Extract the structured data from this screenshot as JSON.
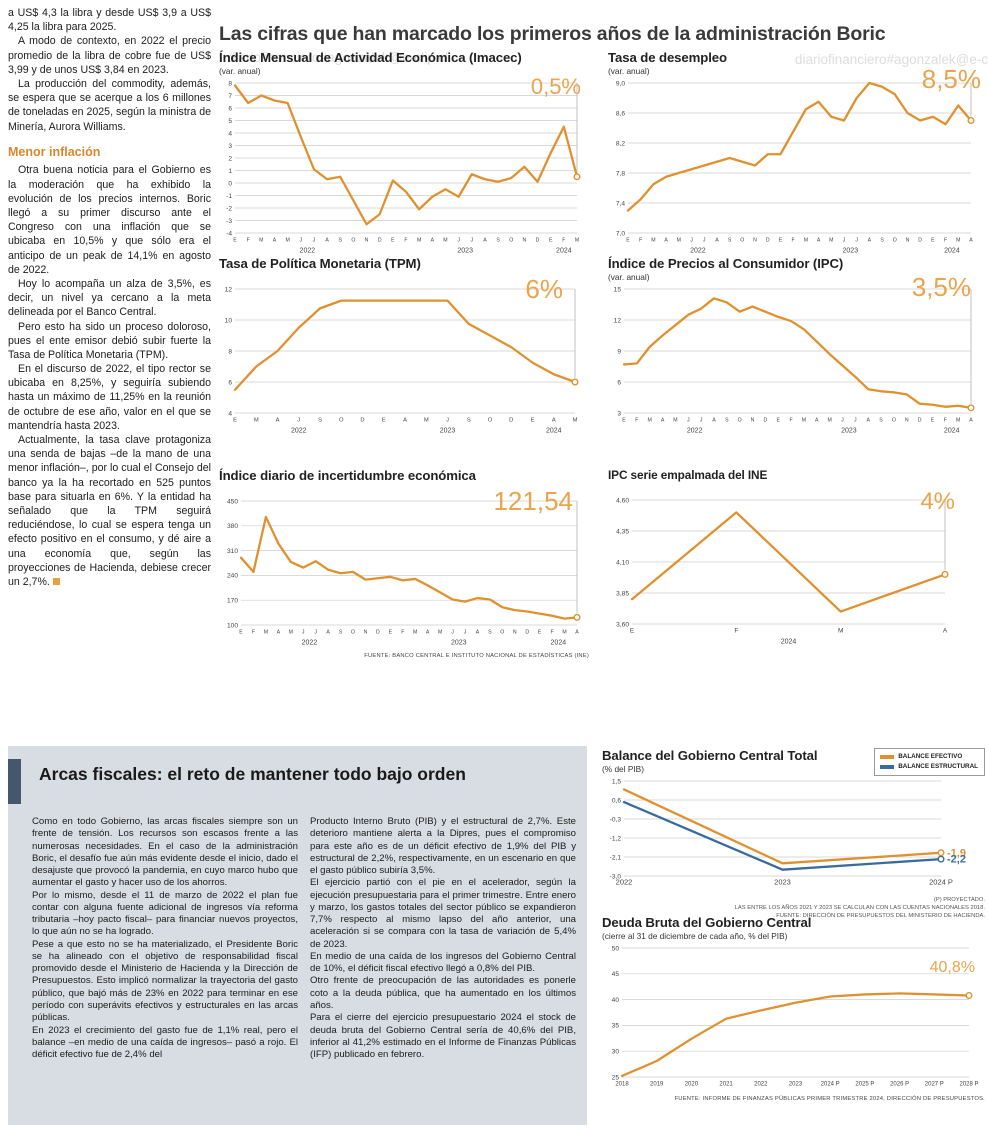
{
  "watermark": "diariofinanciero#agonzalek@e-clip.cl",
  "colors": {
    "orange": "#E0912F",
    "blue": "#3A6B9E",
    "big_label": "#E9A44C",
    "box_bg": "#D8DDE3",
    "box_accent": "#46566C"
  },
  "main_title": "Las cifras que han marcado los primeros años de la administración Boric",
  "left_column": {
    "intro_paragraphs": [
      "a US$ 4,3 la libra y desde US$ 3,9 a US$ 4,25 la libra para 2025.",
      "A modo de contexto, en 2022 el precio promedio de la libra de cobre fue de US$ 3,99 y de unos US$ 3,84 en 2023.",
      "La producción del commodity, además, se espera que se acerque a los 6 millones de toneladas en 2025, según la ministra de Minería, Aurora Williams."
    ],
    "section_title": "Menor inflación",
    "section_paragraphs": [
      "Otra buena noticia para el Gobierno es la moderación que ha exhibido la evolución de los precios internos. Boric llegó a su primer discurso ante el Congreso con una inflación que se ubicaba en 10,5% y que sólo era el anticipo de un peak de 14,1% en agosto de 2022.",
      "Hoy lo acompaña un alza de 3,5%, es decir, un nivel ya cercano a la meta delineada por el Banco Central.",
      "Pero esto ha sido un proceso doloroso, pues el ente emisor debió subir fuerte la Tasa de Política Monetaria (TPM).",
      "En el discurso de 2022, el tipo rector se ubicaba en 8,25%, y seguiría subiendo hasta un máximo de 11,25% en la reunión de octubre de ese año, valor en el que se mantendría hasta 2023.",
      "Actualmente, la tasa clave protagoniza una senda de bajas –de la mano de una menor inflación–, por lo cual el Consejo del banco ya la ha recortado en 525 puntos base para situarla en 6%. Y la entidad ha señalado que la TPM seguirá reduciéndose, lo cual se espera tenga un efecto positivo en el consumo, y dé aire a una economía que, según las proyecciones de Hacienda, debiese crecer un 2,7%."
    ]
  },
  "notes": {
    "top_source": "FUENTE: BANCO CENTRAL E INSTITUTO NACIONAL DE ESTADÍSTICAS (INE)",
    "balance": [
      "(P) PROYECTADO.",
      "LAS ENTRE LOS AÑOS 2021 Y 2023 SE CALCULAN  CON LAS CUENTAS NACIONALES 2018.",
      "FUENTE: DIRECCIÓN DE PRESUPUESTOS DEL MINISTERIO DE HACIENDA."
    ],
    "debt": "FUENTE: INFORME DE FINANZAS PÚBLICAS PRIMER TRIMESTRE 2024, DIRECCIÓN DE PRESUPUESTOS."
  },
  "fiscal_box": {
    "title": "Arcas fiscales: el reto de mantener todo bajo orden",
    "col1": [
      "Como en todo Gobierno, las arcas fiscales siempre son un frente de tensión. Los recursos son escasos frente a las numerosas necesidades. En el caso de la administración Boric, el desafío fue aún más evidente desde el inicio, dado el desajuste que provocó la pandemia, en cuyo marco hubo que aumentar el gasto y hacer uso de los ahorros.",
      "Por lo mismo, desde el 11 de marzo de 2022 el plan fue contar con alguna fuente adicional de ingresos vía reforma tributaria –hoy pacto fiscal– para financiar nuevos proyectos, lo que aún no se ha logrado.",
      "Pese a que esto no se ha materializado, el Presidente Boric se ha alineado con el objetivo de responsabilidad fiscal promovido desde el Ministerio de Hacienda y la Dirección de Presupuestos. Esto implicó normalizar la trayectoria del gasto público, que bajó más de 23% en 2022 para terminar en ese período con superávits efectivos y estructurales en las arcas públicas.",
      "En 2023 el crecimiento del gasto fue de 1,1% real, pero el balance –en medio de una caída de ingresos– pasó a rojo. El déficit efectivo fue de 2,4% del"
    ],
    "col2": [
      "Producto Interno Bruto (PIB) y el estructural de 2,7%. Este deterioro mantiene alerta a la Dipres, pues el compromiso para este año es de un déficit efectivo de 1,9% del PIB y estructural de 2,2%, respectivamente, en un escenario en que el gasto público subiría 3,5%.",
      "El ejercicio partió con el pie en el acelerador, según la ejecución presupuestaria para el primer trimestre. Entre enero y marzo, los gastos totales del sector público se expandieron 7,7% respecto al mismo lapso del año anterior, una aceleración si se compara con la tasa de variación de 5,4% de 2023.",
      "En medio de una caída de los ingresos del Gobierno Central de 10%, el déficit fiscal efectivo llegó a 0,8% del PIB.",
      "Otro frente de preocupación de las autoridades es ponerle coto a la deuda pública, que ha aumentado en los últimos años.",
      "Para el cierre del ejercicio presupuestario 2024 el stock de deuda bruta del Gobierno Central sería de 40,6% del PIB, inferior al 41,2% estimado en el Informe de Finanzas Públicas (IFP) publicado en febrero."
    ]
  },
  "chart_data": [
    {
      "id": "imacec",
      "type": "line",
      "title": "Índice Mensual de Actividad Económica (Imacec)",
      "subtitle": "(var. anual)",
      "big_label": "0,5%",
      "ylim": [
        -4,
        8
      ],
      "yticks": [
        8,
        7,
        6,
        5,
        4,
        3,
        2,
        1,
        0,
        -1,
        -2,
        -3,
        -4
      ],
      "ytick_labels": [
        "8",
        "7",
        "6",
        "5",
        "4",
        "3",
        "2",
        "1",
        "0",
        "-1",
        "-2",
        "-3",
        "-4"
      ],
      "x_labels": [
        "E",
        "F",
        "M",
        "A",
        "M",
        "J",
        "J",
        "A",
        "S",
        "O",
        "N",
        "D",
        "E",
        "F",
        "M",
        "A",
        "M",
        "J",
        "J",
        "A",
        "S",
        "O",
        "N",
        "D",
        "E",
        "F",
        "M"
      ],
      "year_labels": [
        {
          "label": "2022",
          "start": 0,
          "end": 11
        },
        {
          "label": "2023",
          "start": 12,
          "end": 23
        },
        {
          "label": "2024",
          "start": 24,
          "end": 26
        }
      ],
      "end_line": true,
      "ml": 16,
      "mr": 12,
      "x_font": 5.2,
      "series": [
        {
          "name": "Imacec",
          "color": "#E0912F",
          "values": [
            7.8,
            6.4,
            7.0,
            6.6,
            6.4,
            3.7,
            1.1,
            0.3,
            0.5,
            -1.4,
            -3.3,
            -2.5,
            0.2,
            -0.7,
            -2.1,
            -1.1,
            -0.5,
            -1.1,
            0.7,
            0.3,
            0.1,
            0.4,
            1.3,
            0.1,
            2.4,
            4.5,
            0.5
          ]
        }
      ]
    },
    {
      "id": "desempleo",
      "type": "line",
      "title": "Tasa de desempleo",
      "subtitle": "(var. anual)",
      "big_label": "8,5%",
      "ylim": [
        7.0,
        9.0
      ],
      "yticks": [
        9.0,
        8.6,
        8.2,
        7.8,
        7.4,
        7.0
      ],
      "ytick_labels": [
        "9,0",
        "8,6",
        "8,2",
        "7,8",
        "7,4",
        "7,0"
      ],
      "x_labels": [
        "E",
        "F",
        "M",
        "A",
        "M",
        "J",
        "J",
        "A",
        "S",
        "O",
        "N",
        "D",
        "E",
        "F",
        "M",
        "A",
        "M",
        "J",
        "J",
        "A",
        "S",
        "O",
        "N",
        "D",
        "E",
        "F",
        "M",
        "A"
      ],
      "year_labels": [
        {
          "label": "2022",
          "start": 0,
          "end": 11
        },
        {
          "label": "2023",
          "start": 12,
          "end": 23
        },
        {
          "label": "2024",
          "start": 24,
          "end": 27
        }
      ],
      "end_line": true,
      "ml": 20,
      "mr": 14,
      "x_font": 5.2,
      "series": [
        {
          "name": "Desempleo",
          "color": "#E0912F",
          "values": [
            7.3,
            7.45,
            7.65,
            7.75,
            7.8,
            7.85,
            7.9,
            7.95,
            8.0,
            7.95,
            7.9,
            8.05,
            8.05,
            8.35,
            8.65,
            8.75,
            8.55,
            8.5,
            8.8,
            9.0,
            8.95,
            8.85,
            8.6,
            8.5,
            8.55,
            8.45,
            8.7,
            8.5
          ]
        }
      ]
    },
    {
      "id": "tpm",
      "type": "line",
      "title": "Tasa de Política Monetaria (TPM)",
      "subtitle": "",
      "big_label": "6%",
      "ylim": [
        4,
        12
      ],
      "yticks": [
        12,
        10,
        8,
        6,
        4
      ],
      "ytick_labels": [
        "12",
        "10",
        "8",
        "6",
        "4"
      ],
      "x_labels": [
        "E",
        "M",
        "A",
        "J",
        "S",
        "O",
        "D",
        "E",
        "A",
        "M",
        "J",
        "S",
        "O",
        "D",
        "E",
        "A",
        "M"
      ],
      "year_labels": [
        {
          "label": "2022",
          "start": 0,
          "end": 6
        },
        {
          "label": "2023",
          "start": 7,
          "end": 13
        },
        {
          "label": "2024",
          "start": 14,
          "end": 16
        }
      ],
      "end_line": true,
      "ml": 16,
      "mr": 14,
      "x_font": 5.8,
      "series": [
        {
          "name": "TPM",
          "color": "#E0912F",
          "values": [
            5.5,
            7.0,
            8.0,
            9.5,
            10.75,
            11.25,
            11.25,
            11.25,
            11.25,
            11.25,
            11.25,
            9.75,
            9.0,
            8.25,
            7.25,
            6.5,
            6.0
          ]
        }
      ]
    },
    {
      "id": "ipc",
      "type": "line",
      "title": "Índice de Precios al Consumidor (IPC)",
      "subtitle": "(var. anual)",
      "big_label": "3,5%",
      "ylim": [
        3,
        15
      ],
      "yticks": [
        15,
        12,
        9,
        6,
        3
      ],
      "ytick_labels": [
        "15",
        "12",
        "9",
        "6",
        "3"
      ],
      "x_labels": [
        "E",
        "F",
        "M",
        "A",
        "M",
        "J",
        "J",
        "A",
        "S",
        "O",
        "N",
        "D",
        "E",
        "F",
        "M",
        "A",
        "M",
        "J",
        "J",
        "A",
        "S",
        "O",
        "N",
        "D",
        "E",
        "F",
        "M",
        "A"
      ],
      "year_labels": [
        {
          "label": "2022",
          "start": 0,
          "end": 11
        },
        {
          "label": "2023",
          "start": 12,
          "end": 23
        },
        {
          "label": "2024",
          "start": 24,
          "end": 27
        }
      ],
      "end_line": true,
      "ml": 16,
      "mr": 14,
      "x_font": 5.2,
      "series": [
        {
          "name": "IPC",
          "color": "#E0912F",
          "values": [
            7.7,
            7.8,
            9.4,
            10.5,
            11.5,
            12.5,
            13.1,
            14.1,
            13.7,
            12.8,
            13.3,
            12.8,
            12.3,
            11.9,
            11.1,
            9.9,
            8.7,
            7.6,
            6.5,
            5.3,
            5.1,
            5.0,
            4.8,
            3.9,
            3.8,
            3.6,
            3.7,
            3.5
          ]
        }
      ]
    },
    {
      "id": "incertidumbre",
      "type": "line",
      "title": "Índice diario de incertidumbre económica",
      "subtitle": "",
      "big_label": "121,54",
      "ylim": [
        100,
        450
      ],
      "yticks": [
        450,
        380,
        310,
        240,
        170,
        100
      ],
      "ytick_labels": [
        "450",
        "380",
        "310",
        "240",
        "170",
        "100"
      ],
      "x_labels": [
        "E",
        "F",
        "M",
        "A",
        "M",
        "J",
        "J",
        "A",
        "S",
        "O",
        "N",
        "D",
        "E",
        "F",
        "M",
        "A",
        "M",
        "J",
        "J",
        "A",
        "S",
        "O",
        "N",
        "D",
        "E",
        "F",
        "M",
        "A"
      ],
      "year_labels": [
        {
          "label": "2022",
          "start": 0,
          "end": 11
        },
        {
          "label": "2023",
          "start": 12,
          "end": 23
        },
        {
          "label": "2024",
          "start": 24,
          "end": 27
        }
      ],
      "end_line": true,
      "ml": 22,
      "mr": 12,
      "x_font": 5.2,
      "series": [
        {
          "name": "Incertidumbre",
          "color": "#E0912F",
          "values": [
            290,
            250,
            405,
            330,
            278,
            262,
            280,
            256,
            246,
            250,
            228,
            232,
            236,
            226,
            230,
            212,
            192,
            172,
            166,
            176,
            172,
            150,
            142,
            138,
            132,
            126,
            118,
            121.54
          ]
        }
      ]
    },
    {
      "id": "ipc-empalmada",
      "type": "line",
      "title": "IPC serie empalmada del INE",
      "subtitle": "",
      "big_label": "4%",
      "ylim": [
        3.6,
        4.6
      ],
      "yticks": [
        4.6,
        4.35,
        4.1,
        3.85,
        3.6
      ],
      "ytick_labels": [
        "4,60",
        "4,35",
        "4,10",
        "3,85",
        "3,60"
      ],
      "x_labels": [
        "E",
        "F",
        "M",
        "A"
      ],
      "year_labels": [
        {
          "label": "2024",
          "start": 0,
          "end": 3
        }
      ],
      "end_line": true,
      "ml": 24,
      "mr": 40,
      "x_font": 6.5,
      "series": [
        {
          "name": "IPC empalmado",
          "color": "#E0912F",
          "values": [
            3.8,
            4.5,
            3.7,
            4.0
          ]
        }
      ]
    },
    {
      "id": "balance-gobierno-central",
      "type": "line",
      "title": "Balance del Gobierno Central Total",
      "subtitle": "(% del PIB)",
      "big_label": "",
      "ylim": [
        -3.0,
        1.5
      ],
      "yticks": [
        1.5,
        0.6,
        -0.3,
        -1.2,
        -2.1,
        -3.0
      ],
      "ytick_labels": [
        "1,5",
        "0,6",
        "-0,3",
        "-1,2",
        "-2,1",
        "-3,0"
      ],
      "x_labels": [
        "2022",
        "2023",
        "2024 P"
      ],
      "end_line": false,
      "ml": 22,
      "mr": 44,
      "x_font": 7.5,
      "legend_position": "top-right",
      "series": [
        {
          "name": "BALANCE EFECTIVO",
          "color": "#E0912F",
          "end_label": "-1,9",
          "values": [
            1.1,
            -2.4,
            -1.9
          ]
        },
        {
          "name": "BALANCE ESTRUCTURAL",
          "color": "#3A6B9E",
          "end_label": "-2,2",
          "values": [
            0.5,
            -2.7,
            -2.2
          ]
        }
      ]
    },
    {
      "id": "deuda-bruta",
      "type": "line",
      "title": "Deuda Bruta del Gobierno Central",
      "subtitle": "(cierre al 31 de diciembre de cada año, % del PIB)",
      "big_label": "40,8%",
      "ylim": [
        25,
        50
      ],
      "yticks": [
        50,
        45,
        40,
        35,
        30,
        25
      ],
      "ytick_labels": [
        "50",
        "45",
        "40",
        "35",
        "30",
        "25"
      ],
      "x_labels": [
        "2018",
        "2019",
        "2020",
        "2021",
        "2022",
        "2023",
        "2024 P",
        "2025 P",
        "2026 P",
        "2027 P",
        "2028 P"
      ],
      "end_line": false,
      "ml": 20,
      "mr": 16,
      "x_font": 6,
      "series": [
        {
          "name": "Deuda bruta",
          "color": "#E0912F",
          "values": [
            25.2,
            28.1,
            32.4,
            36.3,
            37.9,
            39.4,
            40.6,
            41.0,
            41.2,
            41.0,
            40.8
          ]
        }
      ]
    }
  ]
}
